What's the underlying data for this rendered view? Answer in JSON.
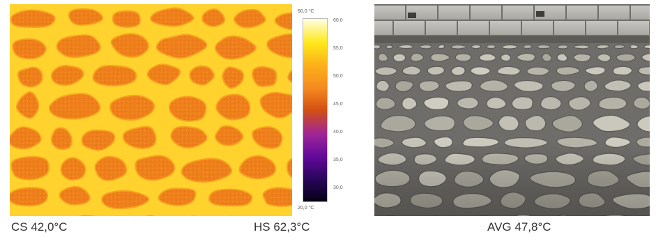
{
  "thermal_image": {
    "palette": [
      "#ffffe6",
      "#ffe81a",
      "#fdb21a",
      "#f5891f",
      "#d25013",
      "#a02696",
      "#640a9c",
      "#28055a",
      "#050014"
    ],
    "scale": {
      "max_label": "60,0 °C",
      "min_label": "20,0 °C",
      "ticks": [
        "60,0",
        "55,0",
        "50,0",
        "45,0",
        "40,0",
        "35,0",
        "30,0"
      ]
    }
  },
  "captions": {
    "cold_spot": "CS 42,0°C",
    "hot_spot": "HS 62,3°C",
    "average": "AVG 47,8°C"
  },
  "photo": {
    "subject": "cobblestone pavement"
  }
}
